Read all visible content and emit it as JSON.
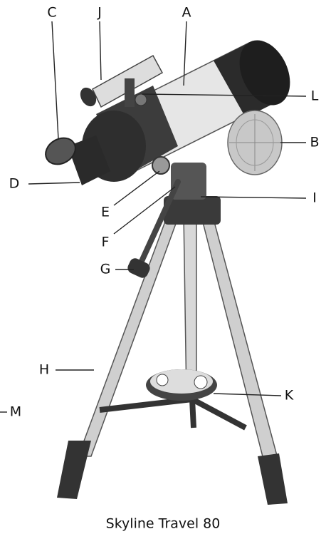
{
  "labels": [
    "C",
    "J",
    "A",
    "L",
    "B",
    "D",
    "E",
    "I",
    "F",
    "G",
    "H",
    "K",
    "M"
  ],
  "caption": "Skyline Travel 80"
}
